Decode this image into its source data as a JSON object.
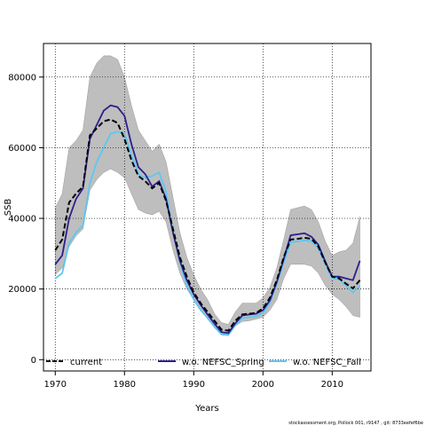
{
  "chart_data": {
    "type": "line",
    "title": "",
    "xlabel": "Years",
    "ylabel": "SSB",
    "xlim": [
      1968.3,
      2015.6
    ],
    "ylim": [
      -3200,
      89500
    ],
    "xticks": [
      1970,
      1980,
      1990,
      2000,
      2010
    ],
    "yticks": [
      0,
      20000,
      40000,
      60000,
      80000
    ],
    "xtick_labels": [
      "1970",
      "1980",
      "1990",
      "2000",
      "2010"
    ],
    "ytick_labels": [
      "0",
      "20000",
      "40000",
      "60000",
      "80000"
    ],
    "grid": true,
    "legend_position": "bottom",
    "x": [
      1970,
      1971,
      1972,
      1973,
      1974,
      1975,
      1976,
      1977,
      1978,
      1979,
      1980,
      1981,
      1982,
      1983,
      1984,
      1985,
      1986,
      1987,
      1988,
      1989,
      1990,
      1991,
      1992,
      1993,
      1994,
      1995,
      1996,
      1997,
      1998,
      1999,
      2000,
      2001,
      2002,
      2003,
      2004,
      2005,
      2006,
      2007,
      2008,
      2009,
      2010,
      2011,
      2012,
      2013,
      2014
    ],
    "band": {
      "upper": [
        43000,
        47000,
        60000,
        62000,
        65000,
        80000,
        84000,
        86000,
        86000,
        85000,
        80000,
        72000,
        65000,
        62000,
        59000,
        61000,
        56000,
        46000,
        36000,
        29000,
        24000,
        20000,
        17000,
        13000,
        10500,
        10000,
        13500,
        16000,
        16000,
        16000,
        17500,
        20500,
        26000,
        34000,
        42500,
        43000,
        43500,
        42500,
        39000,
        33500,
        29500,
        30500,
        31000,
        33000,
        40500
      ],
      "lower": [
        24000,
        26000,
        32000,
        35000,
        37000,
        48000,
        51000,
        53000,
        54000,
        53000,
        51500,
        47000,
        42500,
        41500,
        41000,
        42000,
        39000,
        31000,
        24500,
        20000,
        17000,
        14000,
        11500,
        9000,
        7000,
        6800,
        9500,
        10800,
        11000,
        11500,
        12000,
        14000,
        17000,
        23000,
        27000,
        27000,
        27000,
        26500,
        24500,
        21000,
        18500,
        17000,
        15000,
        12500,
        12000
      ]
    },
    "series": [
      {
        "name": "current",
        "color": "#000000",
        "dash": "6,3",
        "values": [
          31000,
          34000,
          44500,
          47000,
          49000,
          63500,
          65500,
          67500,
          68000,
          67000,
          62500,
          56500,
          52000,
          50500,
          48500,
          50000,
          45000,
          37000,
          29000,
          23500,
          19000,
          16000,
          13500,
          11000,
          8500,
          8200,
          11000,
          12800,
          13000,
          13200,
          14500,
          17500,
          22500,
          29000,
          34000,
          34200,
          34500,
          34200,
          32000,
          27500,
          23500,
          23000,
          21500,
          20200,
          22500
        ]
      },
      {
        "name": "w.o. NEFSC_Spring",
        "color": "#2b1f8c",
        "dash": "",
        "values": [
          27000,
          29500,
          40000,
          45500,
          48500,
          62500,
          66500,
          70500,
          72000,
          71500,
          69000,
          61000,
          54500,
          52500,
          49000,
          50500,
          45500,
          36000,
          28000,
          22500,
          18500,
          15500,
          12800,
          10200,
          7800,
          7500,
          10300,
          12500,
          12800,
          13000,
          14000,
          16800,
          22000,
          28500,
          35200,
          35500,
          35800,
          34800,
          32500,
          27800,
          23500,
          23500,
          23000,
          22500,
          28000
        ]
      },
      {
        "name": "w.o. NEFSC_Fall",
        "color": "#5bc8f2",
        "dash": "",
        "values": [
          23000,
          24500,
          33000,
          36000,
          38000,
          50000,
          56000,
          60000,
          64000,
          64500,
          64000,
          58000,
          52500,
          51500,
          52000,
          53000,
          47500,
          36500,
          27500,
          21000,
          17000,
          14000,
          11800,
          9300,
          7200,
          7000,
          9800,
          11800,
          12000,
          12200,
          13200,
          16200,
          21500,
          27500,
          33200,
          33500,
          33800,
          33500,
          31500,
          27000,
          23000,
          22800,
          21000,
          19000,
          21000
        ]
      }
    ]
  },
  "footnote": "stockassessment.org,  Pollock  001, r9147  , git:  8733eefef6be"
}
